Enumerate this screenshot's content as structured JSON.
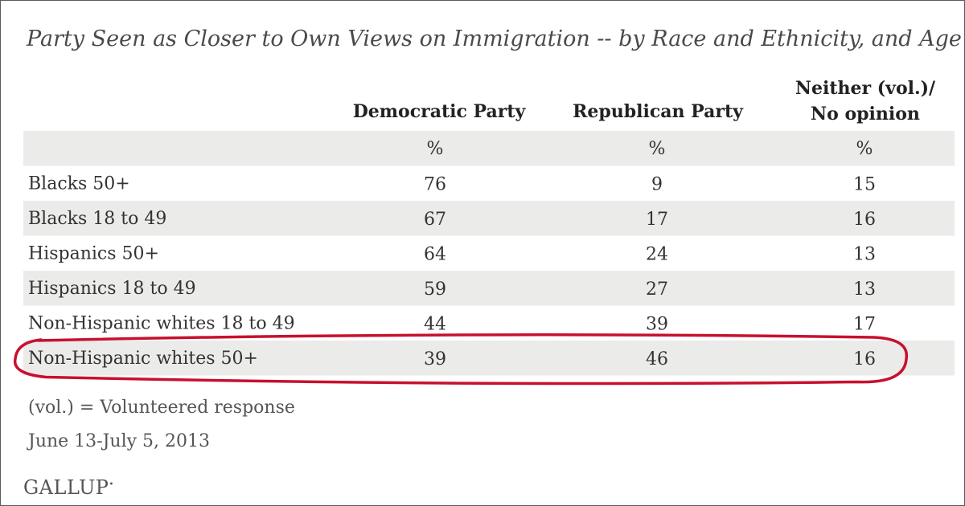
{
  "chart_data": {
    "type": "table",
    "title": "Party Seen as Closer to Own Views on Immigration -- by Race and Ethnicity, and Age",
    "columns": [
      {
        "label": "Democratic Party",
        "label_lines": [
          "Democratic Party"
        ]
      },
      {
        "label": "Republican Party",
        "label_lines": [
          "Republican Party"
        ]
      },
      {
        "label": "Neither (vol.)/ No opinion",
        "label_lines": [
          "Neither (vol.)/",
          "No opinion"
        ]
      }
    ],
    "unit_label": "%",
    "rows": [
      {
        "label": "Blacks 50+",
        "values": [
          76,
          9,
          15
        ]
      },
      {
        "label": "Blacks 18 to 49",
        "values": [
          67,
          17,
          16
        ]
      },
      {
        "label": "Hispanics 50+",
        "values": [
          64,
          24,
          13
        ]
      },
      {
        "label": "Hispanics 18 to 49",
        "values": [
          59,
          27,
          13
        ]
      },
      {
        "label": "Non-Hispanic whites 18 to 49",
        "values": [
          44,
          39,
          17
        ]
      },
      {
        "label": "Non-Hispanic whites 50+",
        "values": [
          39,
          46,
          16
        ],
        "highlighted": true
      }
    ],
    "colors": {
      "stripe": "#ebebea",
      "highlight": "#c8102e",
      "text": "#333333"
    }
  },
  "footnote": "(vol.) = Volunteered response",
  "date": "June 13-July 5, 2013",
  "logo": "GALLUP"
}
